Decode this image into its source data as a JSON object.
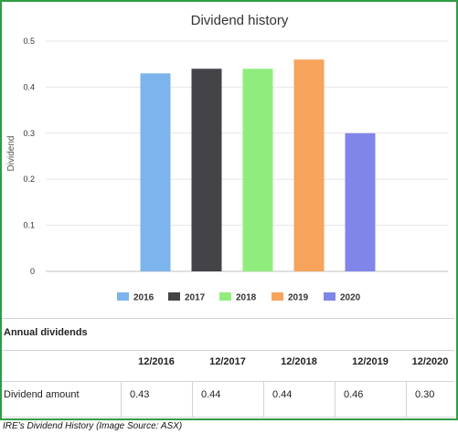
{
  "chart_data": {
    "type": "bar",
    "title": "Dividend history",
    "ylabel": "Dividend",
    "xlabel": "",
    "categories": [
      "2016",
      "2017",
      "2018",
      "2019",
      "2020"
    ],
    "values": [
      0.43,
      0.44,
      0.44,
      0.46,
      0.3
    ],
    "colors": [
      "#7cb5ec",
      "#434348",
      "#90ed7d",
      "#f7a35c",
      "#8085e9"
    ],
    "ylim": [
      0,
      0.5
    ],
    "yticks": [
      "0",
      "0.1",
      "0.2",
      "0.3",
      "0.4",
      "0.5"
    ],
    "grid": true,
    "legend_position": "bottom"
  },
  "table": {
    "title": "Annual dividends",
    "headers": [
      "12/2016",
      "12/2017",
      "12/2018",
      "12/2019",
      "12/2020"
    ],
    "row_label": "Dividend amount",
    "values": [
      "0.43",
      "0.44",
      "0.44",
      "0.46",
      "0.30"
    ]
  },
  "caption": "IRE’s Dividend History (Image Source: ASX)"
}
